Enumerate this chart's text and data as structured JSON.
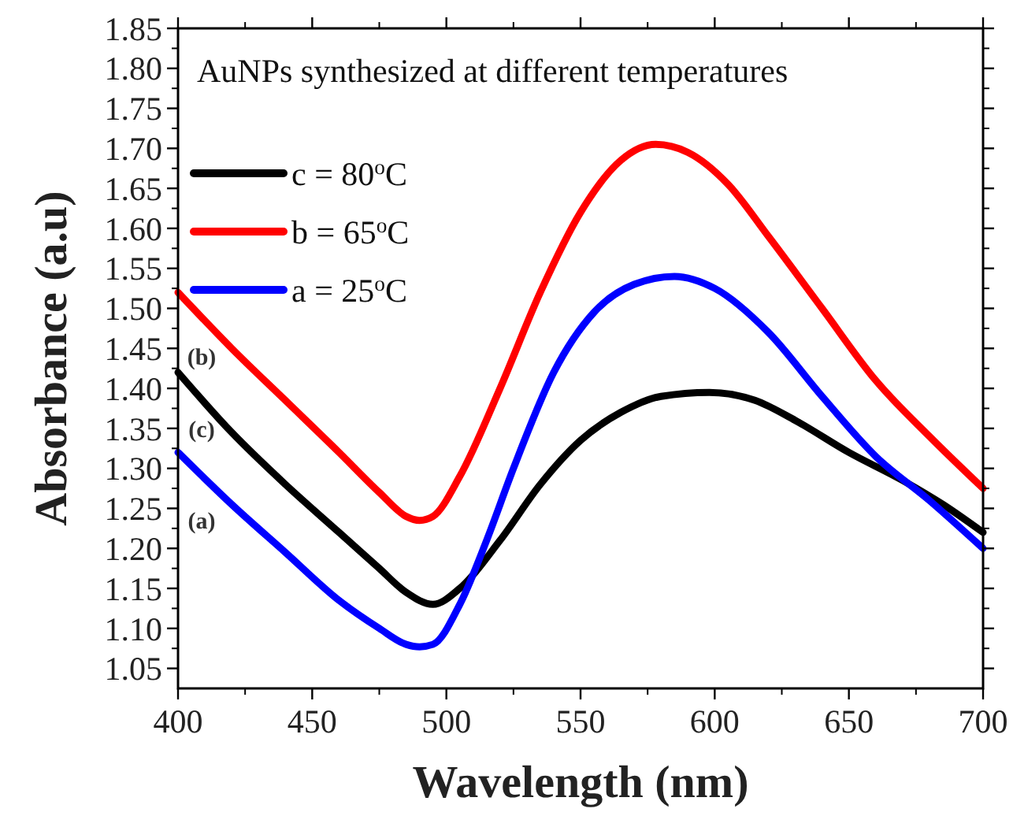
{
  "chart_data": {
    "type": "line",
    "title": "AuNPs synthesized at different temperatures",
    "xlabel": "Wavelength (nm)",
    "ylabel": "Absorbance (a.u)",
    "xlim": [
      400,
      700
    ],
    "xticks": [
      400,
      450,
      500,
      550,
      600,
      650,
      700
    ],
    "ylim": [
      1.025,
      1.85
    ],
    "yticks": [
      {
        "value": 1.05,
        "label": "1.05"
      },
      {
        "value": 1.1,
        "label": "1.10"
      },
      {
        "value": 1.15,
        "label": "1.15"
      },
      {
        "value": 1.2,
        "label": "1.20"
      },
      {
        "value": 1.25,
        "label": "1.25"
      },
      {
        "value": 1.3,
        "label": "1.30"
      },
      {
        "value": 1.35,
        "label": "1.35"
      },
      {
        "value": 1.4,
        "label": "1.40"
      },
      {
        "value": 1.45,
        "label": "1.45"
      },
      {
        "value": 1.5,
        "label": "1.50"
      },
      {
        "value": 1.55,
        "label": "1.55"
      },
      {
        "value": 1.6,
        "label": "1.60"
      },
      {
        "value": 1.65,
        "label": "1.65"
      },
      {
        "value": 1.7,
        "label": "1.70"
      },
      {
        "value": 1.75,
        "label": "1.75"
      },
      {
        "value": 1.8,
        "label": "1.80"
      },
      {
        "value": 1.85,
        "label": "1.85"
      }
    ],
    "grid": false,
    "legend": "top left",
    "marker": "none",
    "line_style": "solid",
    "series": [
      {
        "name": "c = 80$^{o}$C",
        "color": "#000000",
        "x": [
          400,
          420,
          440,
          460,
          475,
          485,
          495,
          505,
          520,
          535,
          550,
          565,
          580,
          598,
          615,
          630,
          650,
          670,
          685,
          700
        ],
        "values": [
          1.42,
          1.345,
          1.28,
          1.22,
          1.175,
          1.145,
          1.13,
          1.15,
          1.21,
          1.28,
          1.335,
          1.37,
          1.39,
          1.395,
          1.385,
          1.36,
          1.32,
          1.285,
          1.255,
          1.22
        ]
      },
      {
        "name": "b = 65$^{o}$C",
        "color": "#ff0000",
        "x": [
          400,
          420,
          440,
          460,
          475,
          485,
          490,
          495,
          505,
          520,
          535,
          550,
          565,
          578,
          590,
          605,
          620,
          640,
          660,
          680,
          700
        ],
        "values": [
          1.52,
          1.45,
          1.385,
          1.32,
          1.27,
          1.24,
          1.235,
          1.24,
          1.29,
          1.4,
          1.52,
          1.62,
          1.685,
          1.705,
          1.695,
          1.655,
          1.59,
          1.5,
          1.41,
          1.34,
          1.275
        ]
      },
      {
        "name": "a = 25$^{o}$C",
        "color": "#0000ff",
        "x": [
          400,
          420,
          440,
          460,
          475,
          485,
          490,
          495,
          505,
          515,
          525,
          540,
          555,
          570,
          585,
          600,
          620,
          640,
          660,
          680,
          700
        ],
        "values": [
          1.32,
          1.255,
          1.195,
          1.135,
          1.1,
          1.08,
          1.077,
          1.08,
          1.13,
          1.21,
          1.3,
          1.42,
          1.495,
          1.53,
          1.54,
          1.525,
          1.47,
          1.39,
          1.315,
          1.26,
          1.2
        ]
      }
    ],
    "annotations": [
      "(b)",
      "(c)",
      "(a)"
    ]
  }
}
